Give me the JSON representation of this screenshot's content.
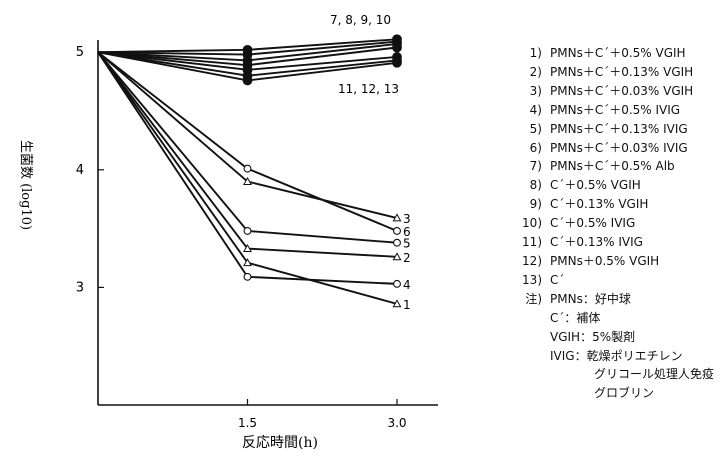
{
  "chart_data": {
    "type": "line",
    "ylabel": "生菌数 (log10)",
    "xlabel": "反応時間(h)",
    "x_ticks": [
      "1.5",
      "3.0"
    ],
    "y_ticks": [
      "5",
      "4",
      "3"
    ],
    "xlim": [
      0,
      3.3
    ],
    "ylim": [
      2.0,
      5.4
    ],
    "series_group_labels": {
      "top_group": "7, 8, 9, 10",
      "bottom_group": "11, 12, 13"
    },
    "series": [
      {
        "id": "1",
        "marker": "triangle",
        "x": [
          0,
          1.5,
          3.0
        ],
        "y": [
          5.0,
          3.21,
          2.86
        ]
      },
      {
        "id": "2",
        "marker": "triangle",
        "x": [
          0,
          1.5,
          3.0
        ],
        "y": [
          5.0,
          3.33,
          3.26
        ]
      },
      {
        "id": "3",
        "marker": "triangle",
        "x": [
          0,
          1.5,
          3.0
        ],
        "y": [
          5.0,
          3.9,
          3.59
        ]
      },
      {
        "id": "4",
        "marker": "circle",
        "x": [
          0,
          1.5,
          3.0
        ],
        "y": [
          5.0,
          3.09,
          3.03
        ]
      },
      {
        "id": "5",
        "marker": "circle",
        "x": [
          0,
          1.5,
          3.0
        ],
        "y": [
          5.0,
          3.48,
          3.38
        ]
      },
      {
        "id": "6",
        "marker": "circle",
        "x": [
          0,
          1.5,
          3.0
        ],
        "y": [
          5.0,
          4.01,
          3.48
        ]
      },
      {
        "id": "7",
        "marker": "filled-circle",
        "x": [
          0,
          1.5,
          3.0
        ],
        "y": [
          5.0,
          5.02,
          5.11
        ]
      },
      {
        "id": "8",
        "marker": "filled-circle",
        "x": [
          0,
          1.5,
          3.0
        ],
        "y": [
          5.0,
          4.98,
          5.09
        ]
      },
      {
        "id": "9",
        "marker": "filled-circle",
        "x": [
          0,
          1.5,
          3.0
        ],
        "y": [
          5.0,
          4.93,
          5.07
        ]
      },
      {
        "id": "10",
        "marker": "filled-circle",
        "x": [
          0,
          1.5,
          3.0
        ],
        "y": [
          5.0,
          4.89,
          5.04
        ]
      },
      {
        "id": "11",
        "marker": "filled-circle",
        "x": [
          0,
          1.5,
          3.0
        ],
        "y": [
          5.0,
          4.85,
          4.96
        ]
      },
      {
        "id": "12",
        "marker": "filled-circle",
        "x": [
          0,
          1.5,
          3.0
        ],
        "y": [
          5.0,
          4.8,
          4.93
        ]
      },
      {
        "id": "13",
        "marker": "filled-circle",
        "x": [
          0,
          1.5,
          3.0
        ],
        "y": [
          5.0,
          4.76,
          4.91
        ]
      }
    ],
    "end_labels": [
      {
        "text": "3",
        "y": 3.59
      },
      {
        "text": "6",
        "y": 3.48
      },
      {
        "text": "5",
        "y": 3.38
      },
      {
        "text": "2",
        "y": 3.26
      },
      {
        "text": "4",
        "y": 3.03
      },
      {
        "text": "1",
        "y": 2.86
      }
    ],
    "legend": [
      {
        "num": "1)",
        "text": "PMNs＋C´＋0.5% VGIH"
      },
      {
        "num": "2)",
        "text": "PMNs＋C´＋0.13% VGIH"
      },
      {
        "num": "3)",
        "text": "PMNs＋C´＋0.03% VGIH"
      },
      {
        "num": "4)",
        "text": "PMNs＋C´＋0.5% IVIG"
      },
      {
        "num": "5)",
        "text": "PMNs＋C´＋0.13% IVIG"
      },
      {
        "num": "6)",
        "text": "PMNs＋C´＋0.03% IVIG"
      },
      {
        "num": "7)",
        "text": "PMNs＋C´＋0.5% Alb"
      },
      {
        "num": "8)",
        "text": "C´＋0.5% VGIH"
      },
      {
        "num": "9)",
        "text": "C´＋0.13% VGIH"
      },
      {
        "num": "10)",
        "text": "C´＋0.5% IVIG"
      },
      {
        "num": "11)",
        "text": "C´＋0.13% IVIG"
      },
      {
        "num": "12)",
        "text": "PMNs＋0.5% VGIH"
      },
      {
        "num": "13)",
        "text": "C´"
      }
    ],
    "notes": {
      "key": "注)",
      "line1": "PMNs：好中球",
      "line2": "C´：補体",
      "line3": "VGIH：5%製剤",
      "line4": "IVIG：乾燥ポリエチレン",
      "line5": "グリコール処理人免疫",
      "line6": "グロブリン"
    }
  }
}
